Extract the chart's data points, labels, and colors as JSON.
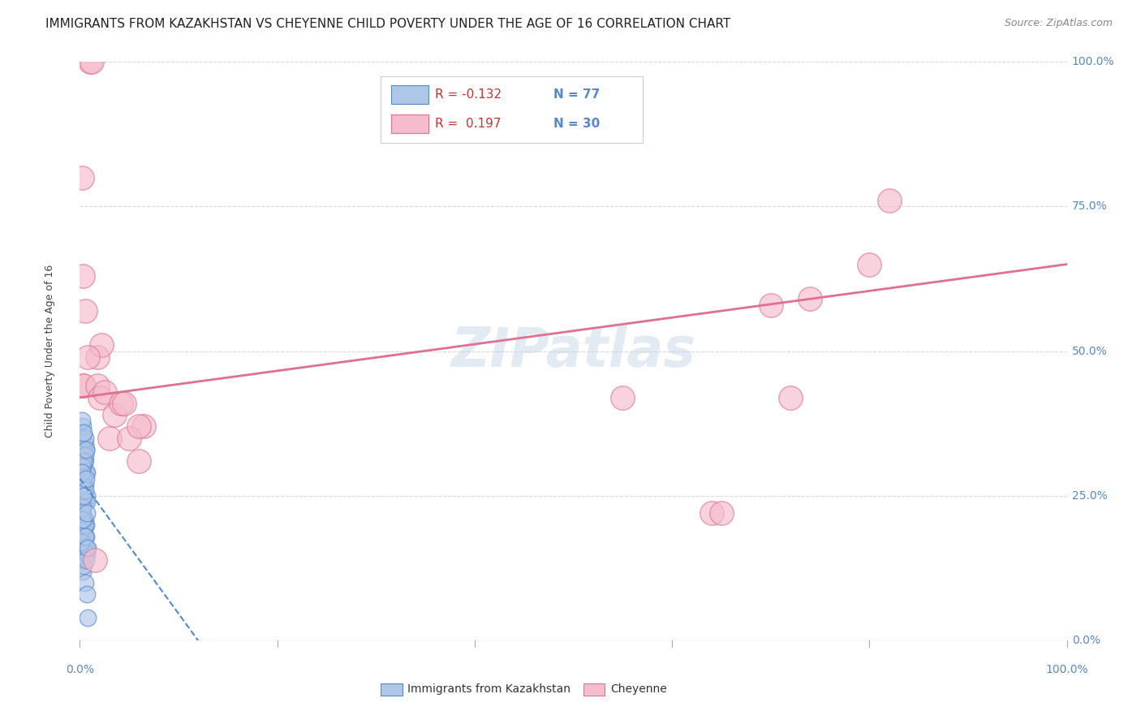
{
  "title": "IMMIGRANTS FROM KAZAKHSTAN VS CHEYENNE CHILD POVERTY UNDER THE AGE OF 16 CORRELATION CHART",
  "source": "Source: ZipAtlas.com",
  "ylabel": "Child Poverty Under the Age of 16",
  "ylabel_ticks": [
    "0.0%",
    "25.0%",
    "50.0%",
    "75.0%",
    "100.0%"
  ],
  "xtick_labels": [
    "0.0%",
    "",
    "",
    "",
    "",
    "100.0%"
  ],
  "legend_blue_r": "R = -0.132",
  "legend_blue_n": "N = 77",
  "legend_pink_r": "R =  0.197",
  "legend_pink_n": "N = 30",
  "legend_blue_label": "Immigrants from Kazakhstan",
  "legend_pink_label": "Cheyenne",
  "watermark": "ZIPatlas",
  "blue_color": "#aec6e8",
  "blue_edge": "#5588cc",
  "pink_color": "#f5bccb",
  "pink_edge": "#e07090",
  "blue_line_color": "#5588cc",
  "pink_line_color": "#e07090",
  "blue_points_x": [
    0.001,
    0.002,
    0.002,
    0.003,
    0.003,
    0.003,
    0.004,
    0.004,
    0.004,
    0.005,
    0.005,
    0.006,
    0.006,
    0.007,
    0.001,
    0.002,
    0.002,
    0.002,
    0.003,
    0.003,
    0.003,
    0.004,
    0.004,
    0.005,
    0.005,
    0.006,
    0.007,
    0.001,
    0.001,
    0.002,
    0.002,
    0.003,
    0.003,
    0.003,
    0.004,
    0.004,
    0.005,
    0.005,
    0.006,
    0.007,
    0.001,
    0.002,
    0.002,
    0.003,
    0.003,
    0.003,
    0.004,
    0.004,
    0.005,
    0.005,
    0.006,
    0.007,
    0.001,
    0.002,
    0.002,
    0.003,
    0.003,
    0.004,
    0.004,
    0.005,
    0.005,
    0.006,
    0.007,
    0.001,
    0.002,
    0.003,
    0.003,
    0.004,
    0.004,
    0.005,
    0.005,
    0.006,
    0.006,
    0.007,
    0.007,
    0.008,
    0.008
  ],
  "blue_points_y": [
    0.28,
    0.32,
    0.22,
    0.3,
    0.27,
    0.35,
    0.18,
    0.26,
    0.31,
    0.29,
    0.24,
    0.33,
    0.2,
    0.25,
    0.15,
    0.28,
    0.23,
    0.3,
    0.17,
    0.26,
    0.32,
    0.27,
    0.19,
    0.21,
    0.34,
    0.29,
    0.16,
    0.31,
    0.24,
    0.28,
    0.22,
    0.36,
    0.25,
    0.14,
    0.33,
    0.2,
    0.27,
    0.31,
    0.18,
    0.29,
    0.23,
    0.26,
    0.3,
    0.12,
    0.25,
    0.37,
    0.21,
    0.28,
    0.32,
    0.35,
    0.16,
    0.24,
    0.19,
    0.27,
    0.38,
    0.22,
    0.3,
    0.13,
    0.31,
    0.2,
    0.26,
    0.33,
    0.15,
    0.17,
    0.29,
    0.23,
    0.21,
    0.36,
    0.25,
    0.18,
    0.1,
    0.28,
    0.14,
    0.22,
    0.08,
    0.16,
    0.04
  ],
  "pink_points_x": [
    0.003,
    0.005,
    0.01,
    0.012,
    0.002,
    0.003,
    0.004,
    0.018,
    0.018,
    0.02,
    0.022,
    0.025,
    0.035,
    0.042,
    0.045,
    0.06,
    0.065,
    0.008,
    0.015,
    0.03,
    0.05,
    0.06,
    0.55,
    0.64,
    0.65,
    0.7,
    0.72,
    0.74,
    0.8,
    0.82
  ],
  "pink_points_y": [
    0.63,
    0.57,
    1.0,
    1.0,
    0.8,
    0.44,
    0.44,
    0.49,
    0.44,
    0.42,
    0.51,
    0.43,
    0.39,
    0.41,
    0.41,
    0.31,
    0.37,
    0.49,
    0.14,
    0.35,
    0.35,
    0.37,
    0.42,
    0.22,
    0.22,
    0.58,
    0.42,
    0.59,
    0.65,
    0.76
  ],
  "blue_trend_x": [
    0.0,
    0.12
  ],
  "blue_trend_y": [
    0.28,
    0.0
  ],
  "pink_trend_x": [
    0.0,
    1.0
  ],
  "pink_trend_y": [
    0.42,
    0.65
  ],
  "xlim": [
    0.0,
    1.0
  ],
  "ylim": [
    0.0,
    1.0
  ],
  "grid_color": "#d8d8d8",
  "background_color": "#ffffff",
  "title_fontsize": 11,
  "axis_label_fontsize": 9,
  "tick_fontsize": 10,
  "source_fontsize": 9,
  "watermark_fontsize": 48,
  "watermark_color": "#c0d4e8",
  "watermark_alpha": 0.45,
  "right_tick_color": "#5588cc",
  "bottom_tick_color": "#5588cc"
}
